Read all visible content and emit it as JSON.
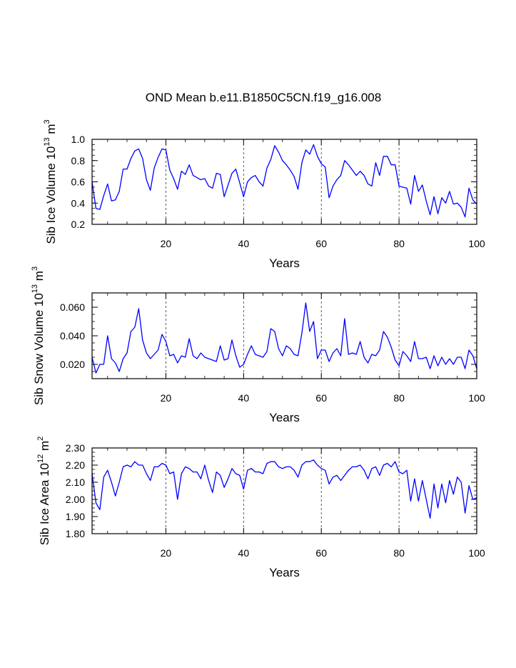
{
  "title": "OND Mean b.e11.B1850C5CN.f19_g16.008",
  "chart_data": [
    {
      "type": "line",
      "ylabel_parts": [
        "Sib Ice Volume 10",
        "13",
        " m",
        "3"
      ],
      "xlabel": "Years",
      "xlim": [
        1,
        100
      ],
      "ylim": [
        0.2,
        1.0
      ],
      "xticks": [
        20,
        40,
        60,
        80,
        100
      ],
      "xtick_labels": [
        "20",
        "40",
        "60",
        "80",
        "100"
      ],
      "yticks": [
        0.2,
        0.4,
        0.6,
        0.8,
        1.0
      ],
      "ytick_labels": [
        "0.2",
        "0.4",
        "0.6",
        "0.8",
        "1.0"
      ],
      "ref_lines_x": [
        20,
        40,
        60,
        80
      ],
      "line_color": "#0000ff",
      "series": [
        {
          "name": "Sib Ice Volume",
          "values": [
            0.6,
            0.35,
            0.34,
            0.47,
            0.58,
            0.42,
            0.43,
            0.51,
            0.72,
            0.72,
            0.82,
            0.89,
            0.91,
            0.82,
            0.62,
            0.52,
            0.73,
            0.83,
            0.91,
            0.9,
            0.71,
            0.63,
            0.53,
            0.7,
            0.67,
            0.76,
            0.66,
            0.64,
            0.62,
            0.63,
            0.56,
            0.54,
            0.68,
            0.67,
            0.46,
            0.57,
            0.68,
            0.72,
            0.59,
            0.46,
            0.6,
            0.64,
            0.66,
            0.6,
            0.56,
            0.73,
            0.81,
            0.94,
            0.88,
            0.8,
            0.76,
            0.71,
            0.65,
            0.53,
            0.78,
            0.9,
            0.86,
            0.95,
            0.84,
            0.77,
            0.74,
            0.45,
            0.56,
            0.62,
            0.66,
            0.8,
            0.76,
            0.71,
            0.66,
            0.7,
            0.66,
            0.58,
            0.56,
            0.78,
            0.66,
            0.84,
            0.84,
            0.76,
            0.76,
            0.56,
            0.55,
            0.54,
            0.39,
            0.66,
            0.51,
            0.57,
            0.42,
            0.29,
            0.46,
            0.3,
            0.45,
            0.4,
            0.51,
            0.39,
            0.4,
            0.36,
            0.27,
            0.54,
            0.43,
            0.39
          ]
        }
      ]
    },
    {
      "type": "line",
      "ylabel_parts": [
        "Sib Snow Volume 10",
        "13",
        " m",
        "3"
      ],
      "xlabel": "Years",
      "xlim": [
        1,
        100
      ],
      "ylim": [
        0.01,
        0.07
      ],
      "xticks": [
        20,
        40,
        60,
        80,
        100
      ],
      "xtick_labels": [
        "20",
        "40",
        "60",
        "80",
        "100"
      ],
      "yticks": [
        0.02,
        0.04,
        0.06
      ],
      "ytick_labels": [
        "0.020",
        "0.040",
        "0.060"
      ],
      "ref_lines_x": [
        20,
        40,
        60,
        80
      ],
      "line_color": "#0000ff",
      "series": [
        {
          "name": "Sib Snow Volume",
          "values": [
            0.025,
            0.014,
            0.02,
            0.02,
            0.04,
            0.024,
            0.021,
            0.015,
            0.024,
            0.028,
            0.043,
            0.046,
            0.059,
            0.037,
            0.028,
            0.024,
            0.027,
            0.03,
            0.041,
            0.036,
            0.026,
            0.027,
            0.021,
            0.026,
            0.025,
            0.038,
            0.026,
            0.024,
            0.028,
            0.025,
            0.024,
            0.023,
            0.022,
            0.033,
            0.023,
            0.024,
            0.037,
            0.026,
            0.018,
            0.02,
            0.027,
            0.033,
            0.027,
            0.026,
            0.025,
            0.029,
            0.045,
            0.043,
            0.031,
            0.026,
            0.033,
            0.031,
            0.027,
            0.026,
            0.042,
            0.063,
            0.043,
            0.05,
            0.024,
            0.03,
            0.03,
            0.022,
            0.028,
            0.031,
            0.026,
            0.052,
            0.027,
            0.028,
            0.027,
            0.036,
            0.025,
            0.021,
            0.027,
            0.026,
            0.03,
            0.043,
            0.039,
            0.032,
            0.023,
            0.019,
            0.029,
            0.026,
            0.022,
            0.036,
            0.024,
            0.024,
            0.025,
            0.017,
            0.026,
            0.019,
            0.025,
            0.02,
            0.024,
            0.02,
            0.025,
            0.025,
            0.017,
            0.03,
            0.026,
            0.017
          ]
        }
      ]
    },
    {
      "type": "line",
      "ylabel_parts": [
        "Sib Ice Area 10",
        "12",
        " m",
        "2"
      ],
      "xlabel": "Years",
      "xlim": [
        1,
        100
      ],
      "ylim": [
        1.8,
        2.3
      ],
      "xticks": [
        20,
        40,
        60,
        80,
        100
      ],
      "xtick_labels": [
        "20",
        "40",
        "60",
        "80",
        "100"
      ],
      "yticks": [
        1.8,
        1.9,
        2.0,
        2.1,
        2.2,
        2.3
      ],
      "ytick_labels": [
        "1.80",
        "1.90",
        "2.00",
        "2.10",
        "2.20",
        "2.30"
      ],
      "ref_lines_x": [
        20,
        40,
        60,
        80
      ],
      "line_color": "#0000ff",
      "series": [
        {
          "name": "Sib Ice Area",
          "values": [
            2.15,
            1.98,
            1.94,
            2.13,
            2.17,
            2.1,
            2.02,
            2.1,
            2.19,
            2.2,
            2.19,
            2.22,
            2.2,
            2.2,
            2.15,
            2.11,
            2.19,
            2.19,
            2.21,
            2.2,
            2.15,
            2.16,
            2.0,
            2.15,
            2.19,
            2.18,
            2.16,
            2.16,
            2.12,
            2.2,
            2.11,
            2.04,
            2.16,
            2.14,
            2.07,
            2.12,
            2.18,
            2.15,
            2.14,
            2.06,
            2.17,
            2.18,
            2.16,
            2.16,
            2.15,
            2.21,
            2.22,
            2.22,
            2.19,
            2.18,
            2.19,
            2.19,
            2.17,
            2.13,
            2.2,
            2.22,
            2.22,
            2.23,
            2.2,
            2.18,
            2.17,
            2.09,
            2.13,
            2.14,
            2.11,
            2.14,
            2.17,
            2.19,
            2.19,
            2.2,
            2.17,
            2.12,
            2.18,
            2.19,
            2.14,
            2.2,
            2.21,
            2.19,
            2.22,
            2.16,
            2.15,
            2.17,
            1.99,
            2.12,
            1.99,
            2.11,
            2.0,
            1.89,
            2.09,
            1.95,
            2.09,
            1.98,
            2.11,
            2.03,
            2.13,
            2.1,
            1.92,
            2.08,
            2.0,
            2.01
          ]
        }
      ]
    }
  ]
}
